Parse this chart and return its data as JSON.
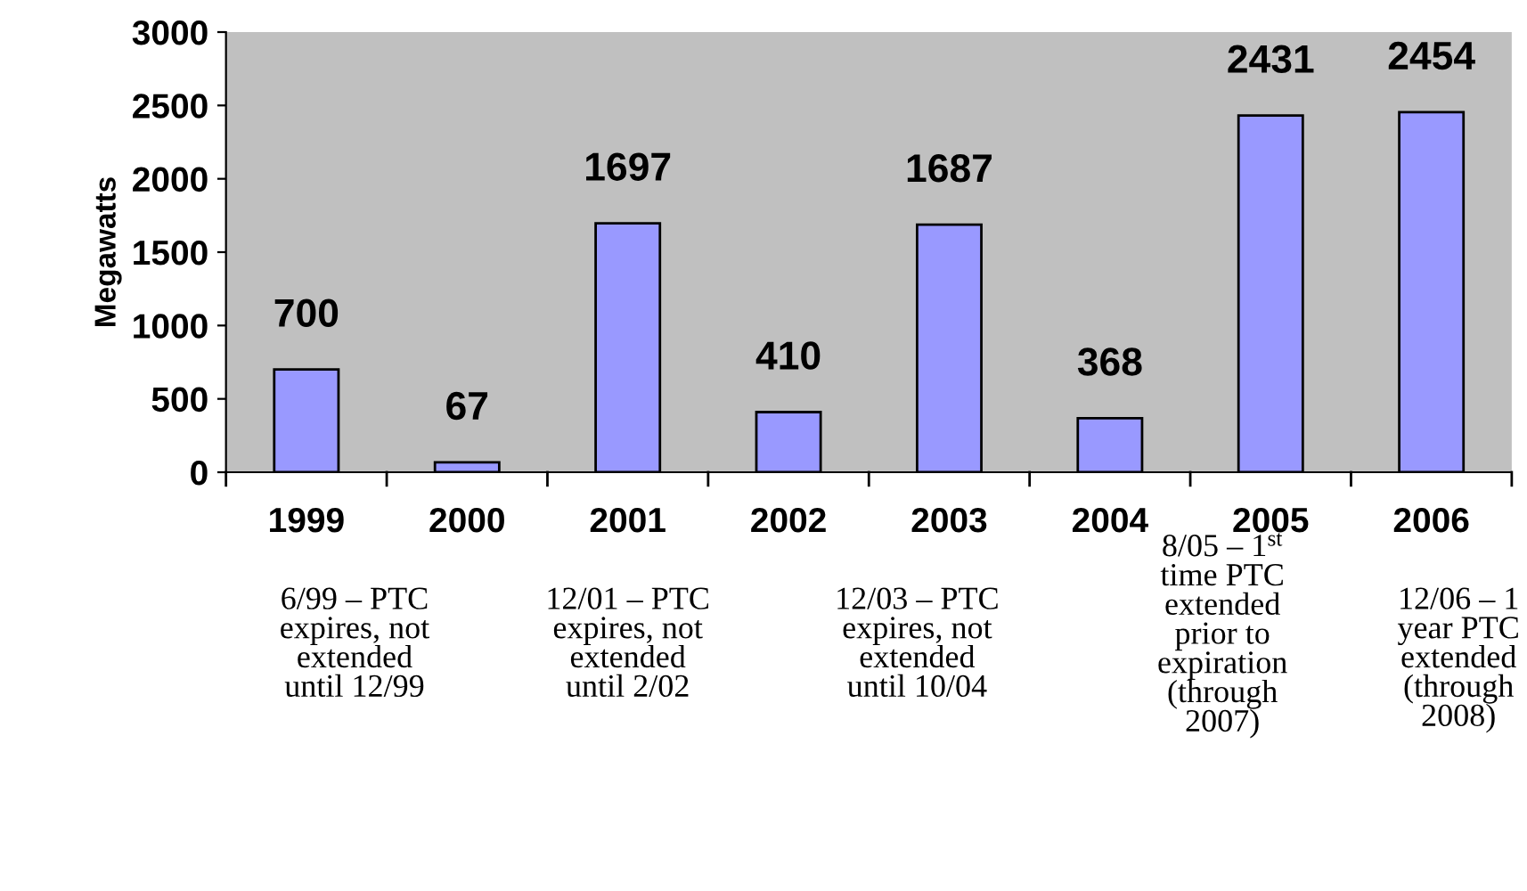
{
  "chart_data": {
    "type": "bar",
    "ylabel": "Megawatts",
    "categories": [
      "1999",
      "2000",
      "2001",
      "2002",
      "2003",
      "2004",
      "2005",
      "2006"
    ],
    "values": [
      700,
      67,
      1697,
      410,
      1687,
      368,
      2431,
      2454
    ],
    "color": "#9999ff",
    "ylim": [
      0,
      3000
    ],
    "yticks": [
      0,
      500,
      1000,
      1500,
      2000,
      2500,
      3000
    ],
    "grid": false,
    "data_labels": true,
    "annotations": [
      "6/99 – PTC\nexpires, not\nextended\nuntil 12/99",
      "12/01 – PTC\nexpires, not\nextended\nuntil 2/02",
      "12/03 – PTC\nexpires, not\nextended\nuntil 10/04",
      "8/05 – 1$^{st}$\ntime PTC\nextended\nprior to\nexpiration\n(through\n2007)",
      "12/06 – 1\nyear PTC\nextended\n(through\n2008)"
    ]
  }
}
